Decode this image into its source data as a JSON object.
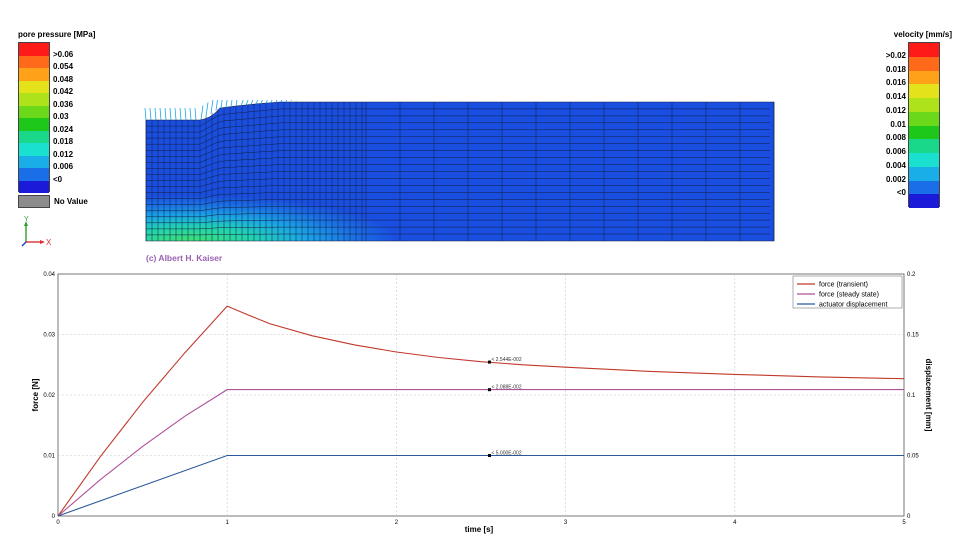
{
  "pore_pressure_legend": {
    "title": "pore pressure [MPa]",
    "colors": [
      "#ff1a1a",
      "#ff6a1a",
      "#ffa21a",
      "#e4e21a",
      "#aee21a",
      "#6cd81a",
      "#1ec81a",
      "#1ad88a",
      "#1ae0d0",
      "#1aaee8",
      "#1a6ee8",
      "#1a1ad8"
    ],
    "labels": [
      ">0.06",
      "0.054",
      "0.048",
      "0.042",
      "0.036",
      "0.03",
      "0.024",
      "0.018",
      "0.012",
      "0.006",
      "<0"
    ],
    "no_value_label": "No Value",
    "no_value_color": "#8c8c8c"
  },
  "velocity_legend": {
    "title": "velocity [mm/s]",
    "colors": [
      "#ff1a1a",
      "#ff6a1a",
      "#ffa21a",
      "#e4e21a",
      "#aee21a",
      "#6cd81a",
      "#1ec81a",
      "#1ad88a",
      "#1ae0d0",
      "#1aaee8",
      "#1a6ee8",
      "#1a1ad8"
    ],
    "labels": [
      ">0.02",
      "0.018",
      "0.016",
      "0.014",
      "0.012",
      "0.01",
      "0.008",
      "0.006",
      "0.004",
      "0.002",
      "<0"
    ]
  },
  "triad": {
    "y": "Y",
    "x": "X"
  },
  "credit": "(c) Albert H. Kaiser",
  "chart_data": {
    "type": "line",
    "xlabel": "time [s]",
    "ylabel_left": "force [N]",
    "ylabel_right": "displacement [mm]",
    "xlim": [
      0,
      5
    ],
    "ylim_left": [
      0,
      0.04
    ],
    "ylim_right": [
      0,
      0.2
    ],
    "x_ticks": [
      "0",
      "1",
      "2",
      "3",
      "4",
      "5"
    ],
    "y_ticks_left": [
      "0",
      "0.01",
      "0.02",
      "0.03",
      "0.04"
    ],
    "y_ticks_right": [
      "0",
      "0.05",
      "0.1",
      "0.15",
      "0.2"
    ],
    "grid": true,
    "legend_position": "top-right",
    "series": [
      {
        "name": "force (transient)",
        "axis": "left",
        "color": "#c0392b",
        "x": [
          0,
          0.25,
          0.5,
          0.75,
          1.0,
          1.1,
          1.25,
          1.5,
          1.75,
          2.0,
          2.25,
          2.5,
          2.75,
          3.0,
          3.5,
          4.0,
          4.5,
          5.0
        ],
        "y": [
          0,
          0.0098,
          0.0188,
          0.027,
          0.0347,
          0.0335,
          0.0318,
          0.0298,
          0.0283,
          0.0271,
          0.0262,
          0.0255,
          0.025,
          0.0246,
          0.0239,
          0.0234,
          0.023,
          0.0227
        ]
      },
      {
        "name": "force (steady state)",
        "axis": "left",
        "color": "#b0509a",
        "x": [
          0,
          0.25,
          0.5,
          0.75,
          1.0,
          5.0
        ],
        "y": [
          0,
          0.006,
          0.0115,
          0.0165,
          0.0209,
          0.0209
        ]
      },
      {
        "name": "actuator displacement",
        "axis": "right",
        "color": "#2a5a9a",
        "x": [
          0,
          1.0,
          5.0
        ],
        "y": [
          0,
          0.05,
          0.05
        ]
      }
    ],
    "annotations": [
      {
        "x": 2.55,
        "y": 0.02544,
        "axis": "left",
        "text": "< 2.544E-002"
      },
      {
        "x": 2.55,
        "y": 0.02088,
        "axis": "left",
        "text": "< 2.088E-002"
      },
      {
        "x": 2.55,
        "y": 0.05,
        "axis": "right",
        "text": "< 5.000E-002"
      }
    ]
  }
}
